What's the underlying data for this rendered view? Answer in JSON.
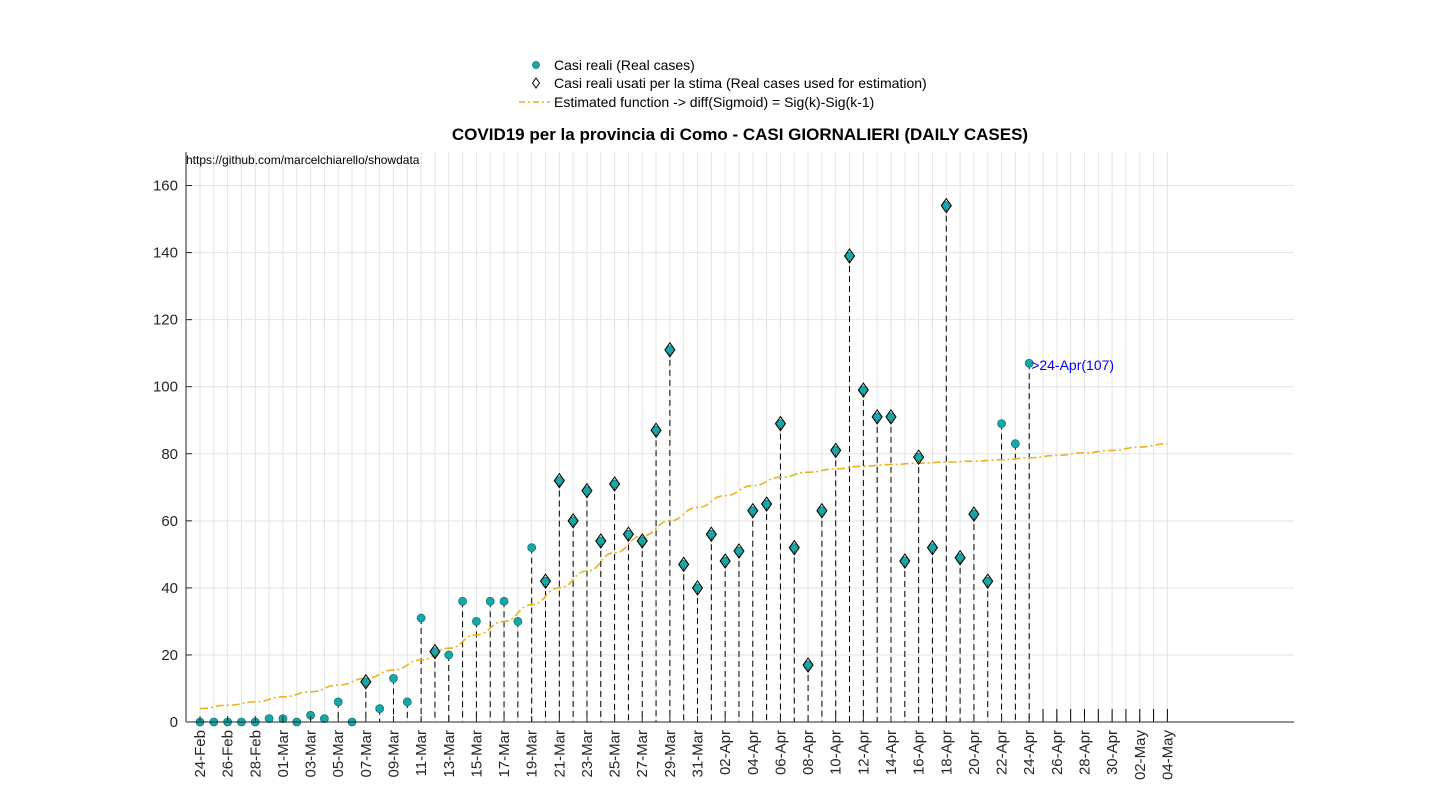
{
  "chart_data": {
    "type": "scatter",
    "title": "COVID19 per la provincia di Como - CASI GIORNALIERI (DAILY CASES)",
    "source_url": "https://github.com/marcelchiarello/showdata",
    "ylim": [
      0,
      170
    ],
    "yticks": [
      0,
      20,
      40,
      60,
      80,
      100,
      120,
      140,
      160
    ],
    "grid": true,
    "legend_position": "top-center",
    "x_start_date": "24-Feb",
    "tick_labels": [
      "24-Feb",
      "26-Feb",
      "28-Feb",
      "01-Mar",
      "03-Mar",
      "05-Mar",
      "07-Mar",
      "09-Mar",
      "11-Mar",
      "13-Mar",
      "15-Mar",
      "17-Mar",
      "19-Mar",
      "21-Mar",
      "23-Mar",
      "25-Mar",
      "27-Mar",
      "29-Mar",
      "31-Mar",
      "02-Apr",
      "04-Apr",
      "06-Apr",
      "08-Apr",
      "10-Apr",
      "12-Apr",
      "14-Apr",
      "16-Apr",
      "18-Apr",
      "20-Apr",
      "22-Apr",
      "24-Apr",
      "26-Apr",
      "28-Apr",
      "30-Apr",
      "02-May",
      "04-May"
    ],
    "legend": [
      {
        "label": "Casi reali (Real cases)",
        "marker": "dot"
      },
      {
        "label": "Casi reali usati per la stima (Real cases used for estimation)",
        "marker": "diamond"
      },
      {
        "label": "Estimated function -> diff(Sigmoid) = Sig(k)-Sig(k-1)",
        "marker": "dashed-line"
      }
    ],
    "series": [
      {
        "name": "Casi reali (Real cases)",
        "x": [
          "24-Feb",
          "25-Feb",
          "26-Feb",
          "27-Feb",
          "28-Feb",
          "29-Feb",
          "01-Mar",
          "02-Mar",
          "03-Mar",
          "04-Mar",
          "05-Mar",
          "06-Mar",
          "07-Mar",
          "08-Mar",
          "09-Mar",
          "10-Mar",
          "11-Mar",
          "12-Mar",
          "13-Mar",
          "14-Mar",
          "15-Mar",
          "16-Mar",
          "17-Mar",
          "18-Mar",
          "19-Mar",
          "20-Mar",
          "21-Mar",
          "22-Mar",
          "23-Mar",
          "24-Mar",
          "25-Mar",
          "26-Mar",
          "27-Mar",
          "28-Mar",
          "29-Mar",
          "30-Mar",
          "31-Mar",
          "01-Apr",
          "02-Apr",
          "03-Apr",
          "04-Apr",
          "05-Apr",
          "06-Apr",
          "07-Apr",
          "08-Apr",
          "09-Apr",
          "10-Apr",
          "11-Apr",
          "12-Apr",
          "13-Apr",
          "14-Apr",
          "15-Apr",
          "16-Apr",
          "17-Apr",
          "18-Apr",
          "19-Apr",
          "20-Apr",
          "21-Apr",
          "22-Apr",
          "23-Apr",
          "24-Apr"
        ],
        "values": [
          0,
          0,
          0,
          0,
          0,
          1,
          1,
          0,
          2,
          1,
          6,
          0,
          12,
          4,
          13,
          6,
          31,
          21,
          20,
          36,
          30,
          36,
          36,
          30,
          52,
          42,
          72,
          60,
          69,
          54,
          71,
          56,
          54,
          87,
          111,
          47,
          40,
          56,
          48,
          51,
          63,
          65,
          89,
          52,
          17,
          63,
          81,
          139,
          99,
          91,
          91,
          48,
          79,
          52,
          154,
          49,
          62,
          42,
          89,
          83,
          107
        ],
        "color": "#1aa6a6"
      },
      {
        "name": "Casi reali usati per la stima (Real cases used for estimation)",
        "x": [
          "07-Mar",
          "12-Mar",
          "20-Mar",
          "21-Mar",
          "22-Mar",
          "23-Mar",
          "24-Mar",
          "25-Mar",
          "26-Mar",
          "27-Mar",
          "28-Mar",
          "29-Mar",
          "30-Mar",
          "31-Mar",
          "01-Apr",
          "02-Apr",
          "03-Apr",
          "04-Apr",
          "05-Apr",
          "06-Apr",
          "07-Apr",
          "08-Apr",
          "09-Apr",
          "10-Apr",
          "11-Apr",
          "12-Apr",
          "13-Apr",
          "14-Apr",
          "15-Apr",
          "16-Apr",
          "17-Apr",
          "18-Apr",
          "19-Apr",
          "20-Apr",
          "21-Apr"
        ],
        "values": [
          12,
          21,
          42,
          72,
          60,
          69,
          54,
          71,
          56,
          54,
          87,
          111,
          47,
          40,
          56,
          48,
          51,
          63,
          65,
          89,
          52,
          17,
          63,
          81,
          139,
          99,
          91,
          91,
          48,
          79,
          52,
          154,
          49,
          62,
          42
        ],
        "color": "#1aa6a6"
      },
      {
        "name": "Estimated function -> diff(Sigmoid) = Sig(k)-Sig(k-1)",
        "x": [
          "24-Feb",
          "26-Feb",
          "28-Feb",
          "01-Mar",
          "03-Mar",
          "05-Mar",
          "07-Mar",
          "09-Mar",
          "11-Mar",
          "13-Mar",
          "15-Mar",
          "17-Mar",
          "19-Mar",
          "21-Mar",
          "23-Mar",
          "25-Mar",
          "27-Mar",
          "29-Mar",
          "31-Mar",
          "02-Apr",
          "04-Apr",
          "06-Apr",
          "08-Apr",
          "10-Apr",
          "12-Apr",
          "14-Apr",
          "16-Apr",
          "18-Apr",
          "20-Apr",
          "22-Apr",
          "24-Apr",
          "26-Apr",
          "28-Apr",
          "30-Apr",
          "02-May",
          "04-May"
        ],
        "values": [
          4,
          5,
          6,
          7.5,
          9,
          11,
          13,
          15.5,
          18.5,
          22,
          26,
          30,
          35,
          40,
          45,
          50.5,
          55.5,
          60,
          64,
          67.5,
          70.5,
          73,
          74.5,
          75.5,
          76.3,
          76.8,
          77.2,
          77.5,
          77.8,
          78.2,
          78.8,
          79.5,
          80.3,
          81,
          82,
          83
        ],
        "color": "#edb120"
      }
    ],
    "annotations": [
      {
        "text": ">24-Apr(107)",
        "x": "24-Apr",
        "y": 107,
        "color": "#0000ff"
      }
    ]
  }
}
